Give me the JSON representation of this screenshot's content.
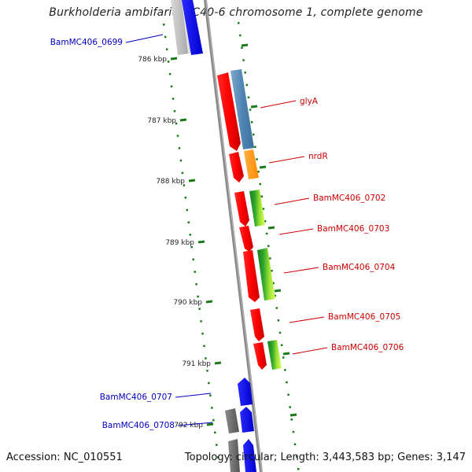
{
  "title": "Burkholderia ambifaria MC40-6 chromosome 1, complete genome",
  "accession_text": "Accession: NC_010551",
  "topology_text": "Topology: circular; Length: 3,443,583 bp; Genes: 3,147",
  "colors": {
    "forward_label": "#cc0000",
    "reverse_label": "#0000bb",
    "tick": "#1a7a1a",
    "backbone": "#888888"
  },
  "kbp_ticks": [
    {
      "label": "786 kbp",
      "kbp": 786
    },
    {
      "label": "787 kbp",
      "kbp": 787
    },
    {
      "label": "788 kbp",
      "kbp": 788
    },
    {
      "label": "789 kbp",
      "kbp": 789
    },
    {
      "label": "790 kbp",
      "kbp": 790
    },
    {
      "label": "791 kbp",
      "kbp": 791
    },
    {
      "label": "792 kbp",
      "kbp": 792
    }
  ],
  "gene_labels": [
    {
      "name": "BamMC406_0699",
      "strand": "reverse"
    },
    {
      "name": "glyA",
      "strand": "forward"
    },
    {
      "name": "nrdR",
      "strand": "forward"
    },
    {
      "name": "BamMC406_0702",
      "strand": "forward"
    },
    {
      "name": "BamMC406_0703",
      "strand": "forward"
    },
    {
      "name": "BamMC406_0704",
      "strand": "forward"
    },
    {
      "name": "BamMC406_0705",
      "strand": "forward"
    },
    {
      "name": "BamMC406_0706",
      "strand": "forward"
    },
    {
      "name": "BamMC406_0707",
      "strand": "reverse"
    },
    {
      "name": "BamMC406_0708",
      "strand": "reverse"
    }
  ]
}
